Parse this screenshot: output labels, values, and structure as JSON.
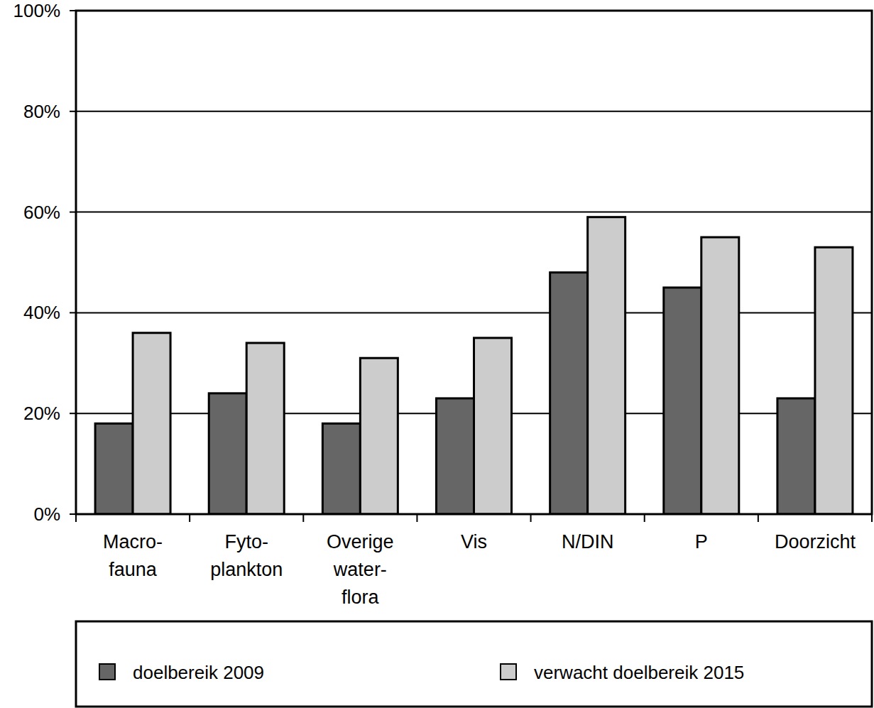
{
  "chart_data": {
    "type": "bar",
    "categories": [
      "Macro-\nfauna",
      "Fyto-\nplankton",
      "Overige\nwater-\nflora",
      "Vis",
      "N/DIN",
      "P",
      "Doorzicht"
    ],
    "series": [
      {
        "name": "doelbereik 2009",
        "color": "#666666",
        "values": [
          18,
          24,
          18,
          23,
          48,
          45,
          23
        ]
      },
      {
        "name": "verwacht doelbereik 2015",
        "color": "#cccccc",
        "values": [
          36,
          34,
          31,
          35,
          59,
          55,
          53
        ]
      }
    ],
    "ylim": [
      0,
      100
    ],
    "yticks": [
      {
        "value": 0,
        "label": "0%"
      },
      {
        "value": 20,
        "label": "20%"
      },
      {
        "value": 40,
        "label": "40%"
      },
      {
        "value": 60,
        "label": "60%"
      },
      {
        "value": 80,
        "label": "80%"
      },
      {
        "value": 100,
        "label": "100%"
      }
    ],
    "grid": true,
    "legend": "bottom"
  }
}
